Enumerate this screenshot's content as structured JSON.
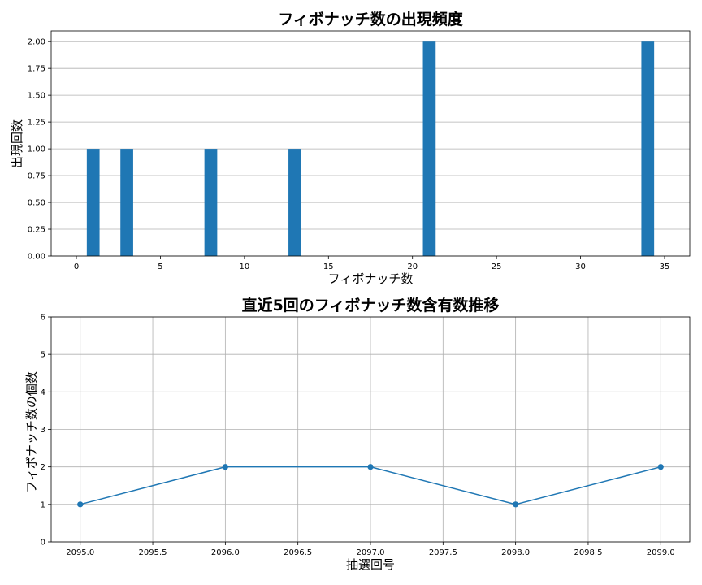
{
  "chart_data": [
    {
      "type": "bar",
      "title": "フィボナッチ数の出現頻度",
      "xlabel": "フィボナッチ数",
      "ylabel": "出現回数",
      "x": [
        1,
        3,
        8,
        13,
        21,
        34
      ],
      "values": [
        1,
        1,
        1,
        1,
        2,
        2
      ],
      "xlim": [
        -1.5,
        36.5
      ],
      "ylim": [
        0,
        2.1
      ],
      "xticks": [
        0,
        5,
        10,
        15,
        20,
        25,
        30,
        35
      ],
      "xtick_labels": [
        "0",
        "5",
        "10",
        "15",
        "20",
        "25",
        "30",
        "35"
      ],
      "yticks": [
        0,
        0.25,
        0.5,
        0.75,
        1.0,
        1.25,
        1.5,
        1.75,
        2.0
      ],
      "ytick_labels": [
        "0.00",
        "0.25",
        "0.50",
        "0.75",
        "1.00",
        "1.25",
        "1.50",
        "1.75",
        "2.00"
      ],
      "grid": "y",
      "bar_color": "#1f77b4"
    },
    {
      "type": "line",
      "title": "直近5回のフィボナッチ数含有数推移",
      "xlabel": "抽選回号",
      "ylabel": "フィボナッチ数の個数",
      "x": [
        2095,
        2096,
        2097,
        2098,
        2099
      ],
      "y": [
        1,
        2,
        2,
        1,
        2
      ],
      "xlim": [
        2094.8,
        2099.2
      ],
      "ylim": [
        0,
        6
      ],
      "xticks": [
        2095.0,
        2095.5,
        2096.0,
        2096.5,
        2097.0,
        2097.5,
        2098.0,
        2098.5,
        2099.0
      ],
      "xtick_labels": [
        "2095.0",
        "2095.5",
        "2096.0",
        "2096.5",
        "2097.0",
        "2097.5",
        "2098.0",
        "2098.5",
        "2099.0"
      ],
      "yticks": [
        0,
        1,
        2,
        3,
        4,
        5,
        6
      ],
      "ytick_labels": [
        "0",
        "1",
        "2",
        "3",
        "4",
        "5",
        "6"
      ],
      "grid": "both",
      "marker": "circle",
      "line_color": "#1f77b4"
    }
  ]
}
